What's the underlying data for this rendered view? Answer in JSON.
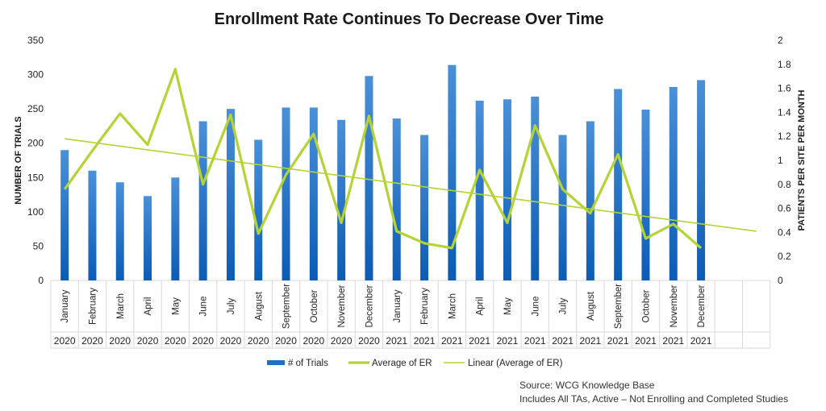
{
  "chart_data": {
    "type": "bar",
    "title": "Enrollment Rate Continues To Decrease Over Time",
    "ylabel": "NUMBER OF TRIALS",
    "y2label": "PATIENTS PER SITE PER MONTH",
    "ylim": [
      0,
      350
    ],
    "y2lim": [
      0,
      2
    ],
    "yticks": [
      "0",
      "50",
      "100",
      "150",
      "200",
      "250",
      "300",
      "350"
    ],
    "y2ticks": [
      "0",
      "0.2",
      "0.4",
      "0.6",
      "0.8",
      "1",
      "1.2",
      "1.4",
      "1.6",
      "1.8",
      "2"
    ],
    "months": [
      "January",
      "February",
      "March",
      "April",
      "May",
      "June",
      "July",
      "August",
      "September",
      "October",
      "November",
      "December",
      "January",
      "February",
      "March",
      "April",
      "May",
      "June",
      "July",
      "August",
      "September",
      "October",
      "November",
      "December"
    ],
    "years": [
      "2020",
      "2020",
      "2020",
      "2020",
      "2020",
      "2020",
      "2020",
      "2020",
      "2020",
      "2020",
      "2020",
      "2020",
      "2021",
      "2021",
      "2021",
      "2021",
      "2021",
      "2021",
      "2021",
      "2021",
      "2021",
      "2021",
      "2021",
      "2021"
    ],
    "series": [
      {
        "name": "# of  Trials",
        "axis": "left",
        "kind": "bar",
        "color": "#1f6fc5",
        "values": [
          190,
          160,
          143,
          123,
          150,
          232,
          250,
          205,
          252,
          252,
          234,
          298,
          236,
          212,
          314,
          262,
          264,
          268,
          212,
          232,
          279,
          249,
          282,
          292
        ]
      },
      {
        "name": "Average of ER",
        "axis": "right",
        "kind": "line",
        "color": "#b5d334",
        "values": [
          0.76,
          1.08,
          1.39,
          1.13,
          1.76,
          0.8,
          1.38,
          0.39,
          0.88,
          1.22,
          0.48,
          1.37,
          0.41,
          0.31,
          0.27,
          0.92,
          0.48,
          1.29,
          0.76,
          0.56,
          1.05,
          0.35,
          0.47,
          0.27
        ]
      },
      {
        "name": "Linear (Average of ER)",
        "axis": "right",
        "kind": "trendline",
        "color": "#b5d334",
        "start": 1.18,
        "end": 0.41
      }
    ],
    "legend_position": "bottom",
    "grid": false
  },
  "footer": {
    "source": "Source: WCG Knowledge Base",
    "note": "Includes All TAs, Active – Not Enrolling and Completed Studies"
  }
}
